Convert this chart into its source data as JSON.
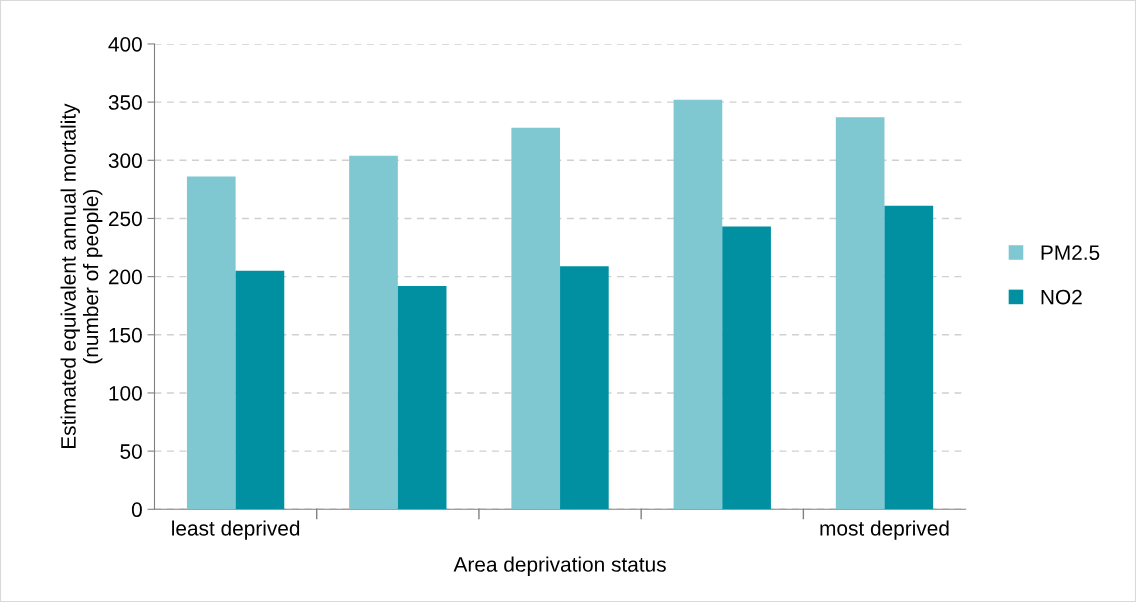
{
  "chart_data": {
    "type": "bar",
    "xlabel": "Area deprivation status",
    "ylabel": "Estimated equivalent annual mortality\n(number of people)",
    "categories": [
      "least deprived",
      null,
      null,
      null,
      "most deprived"
    ],
    "series": [
      {
        "name": "PM2.5",
        "color": "#7fc8d1",
        "values": [
          286,
          304,
          328,
          352,
          337
        ]
      },
      {
        "name": "NO2",
        "color": "#0090a1",
        "values": [
          205,
          192,
          209,
          243,
          261
        ]
      }
    ],
    "ylim": [
      0,
      400
    ],
    "yticks": [
      0,
      50,
      100,
      150,
      200,
      250,
      300,
      350,
      400
    ],
    "grid": "y",
    "legend": "right"
  }
}
